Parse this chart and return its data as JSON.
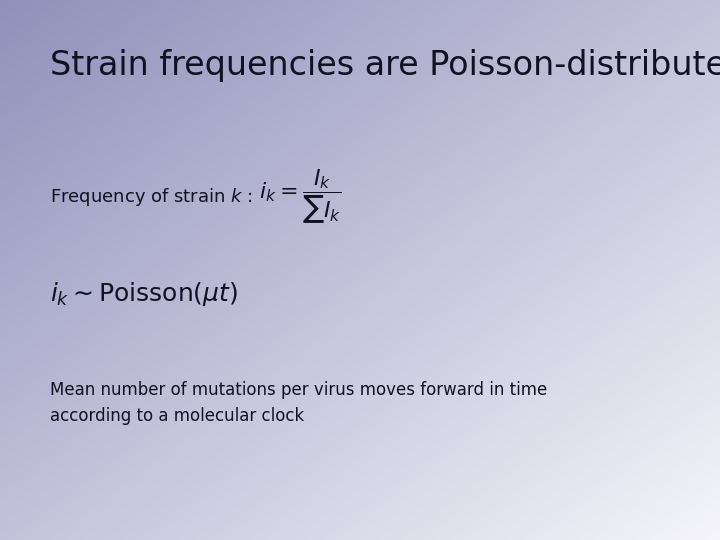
{
  "title": "Strain frequencies are Poisson-distributed",
  "title_fontsize": 24,
  "bg_color_topleft": "#9090bb",
  "bg_color_bottomright": "#f5f5fa",
  "text_color": "#111122",
  "label_fontsize": 13,
  "formula1_fontsize": 16,
  "formula2_fontsize": 18,
  "footnote_fontsize": 12,
  "footnote": "Mean number of mutations per virus moves forward in time\naccording to a molecular clock"
}
